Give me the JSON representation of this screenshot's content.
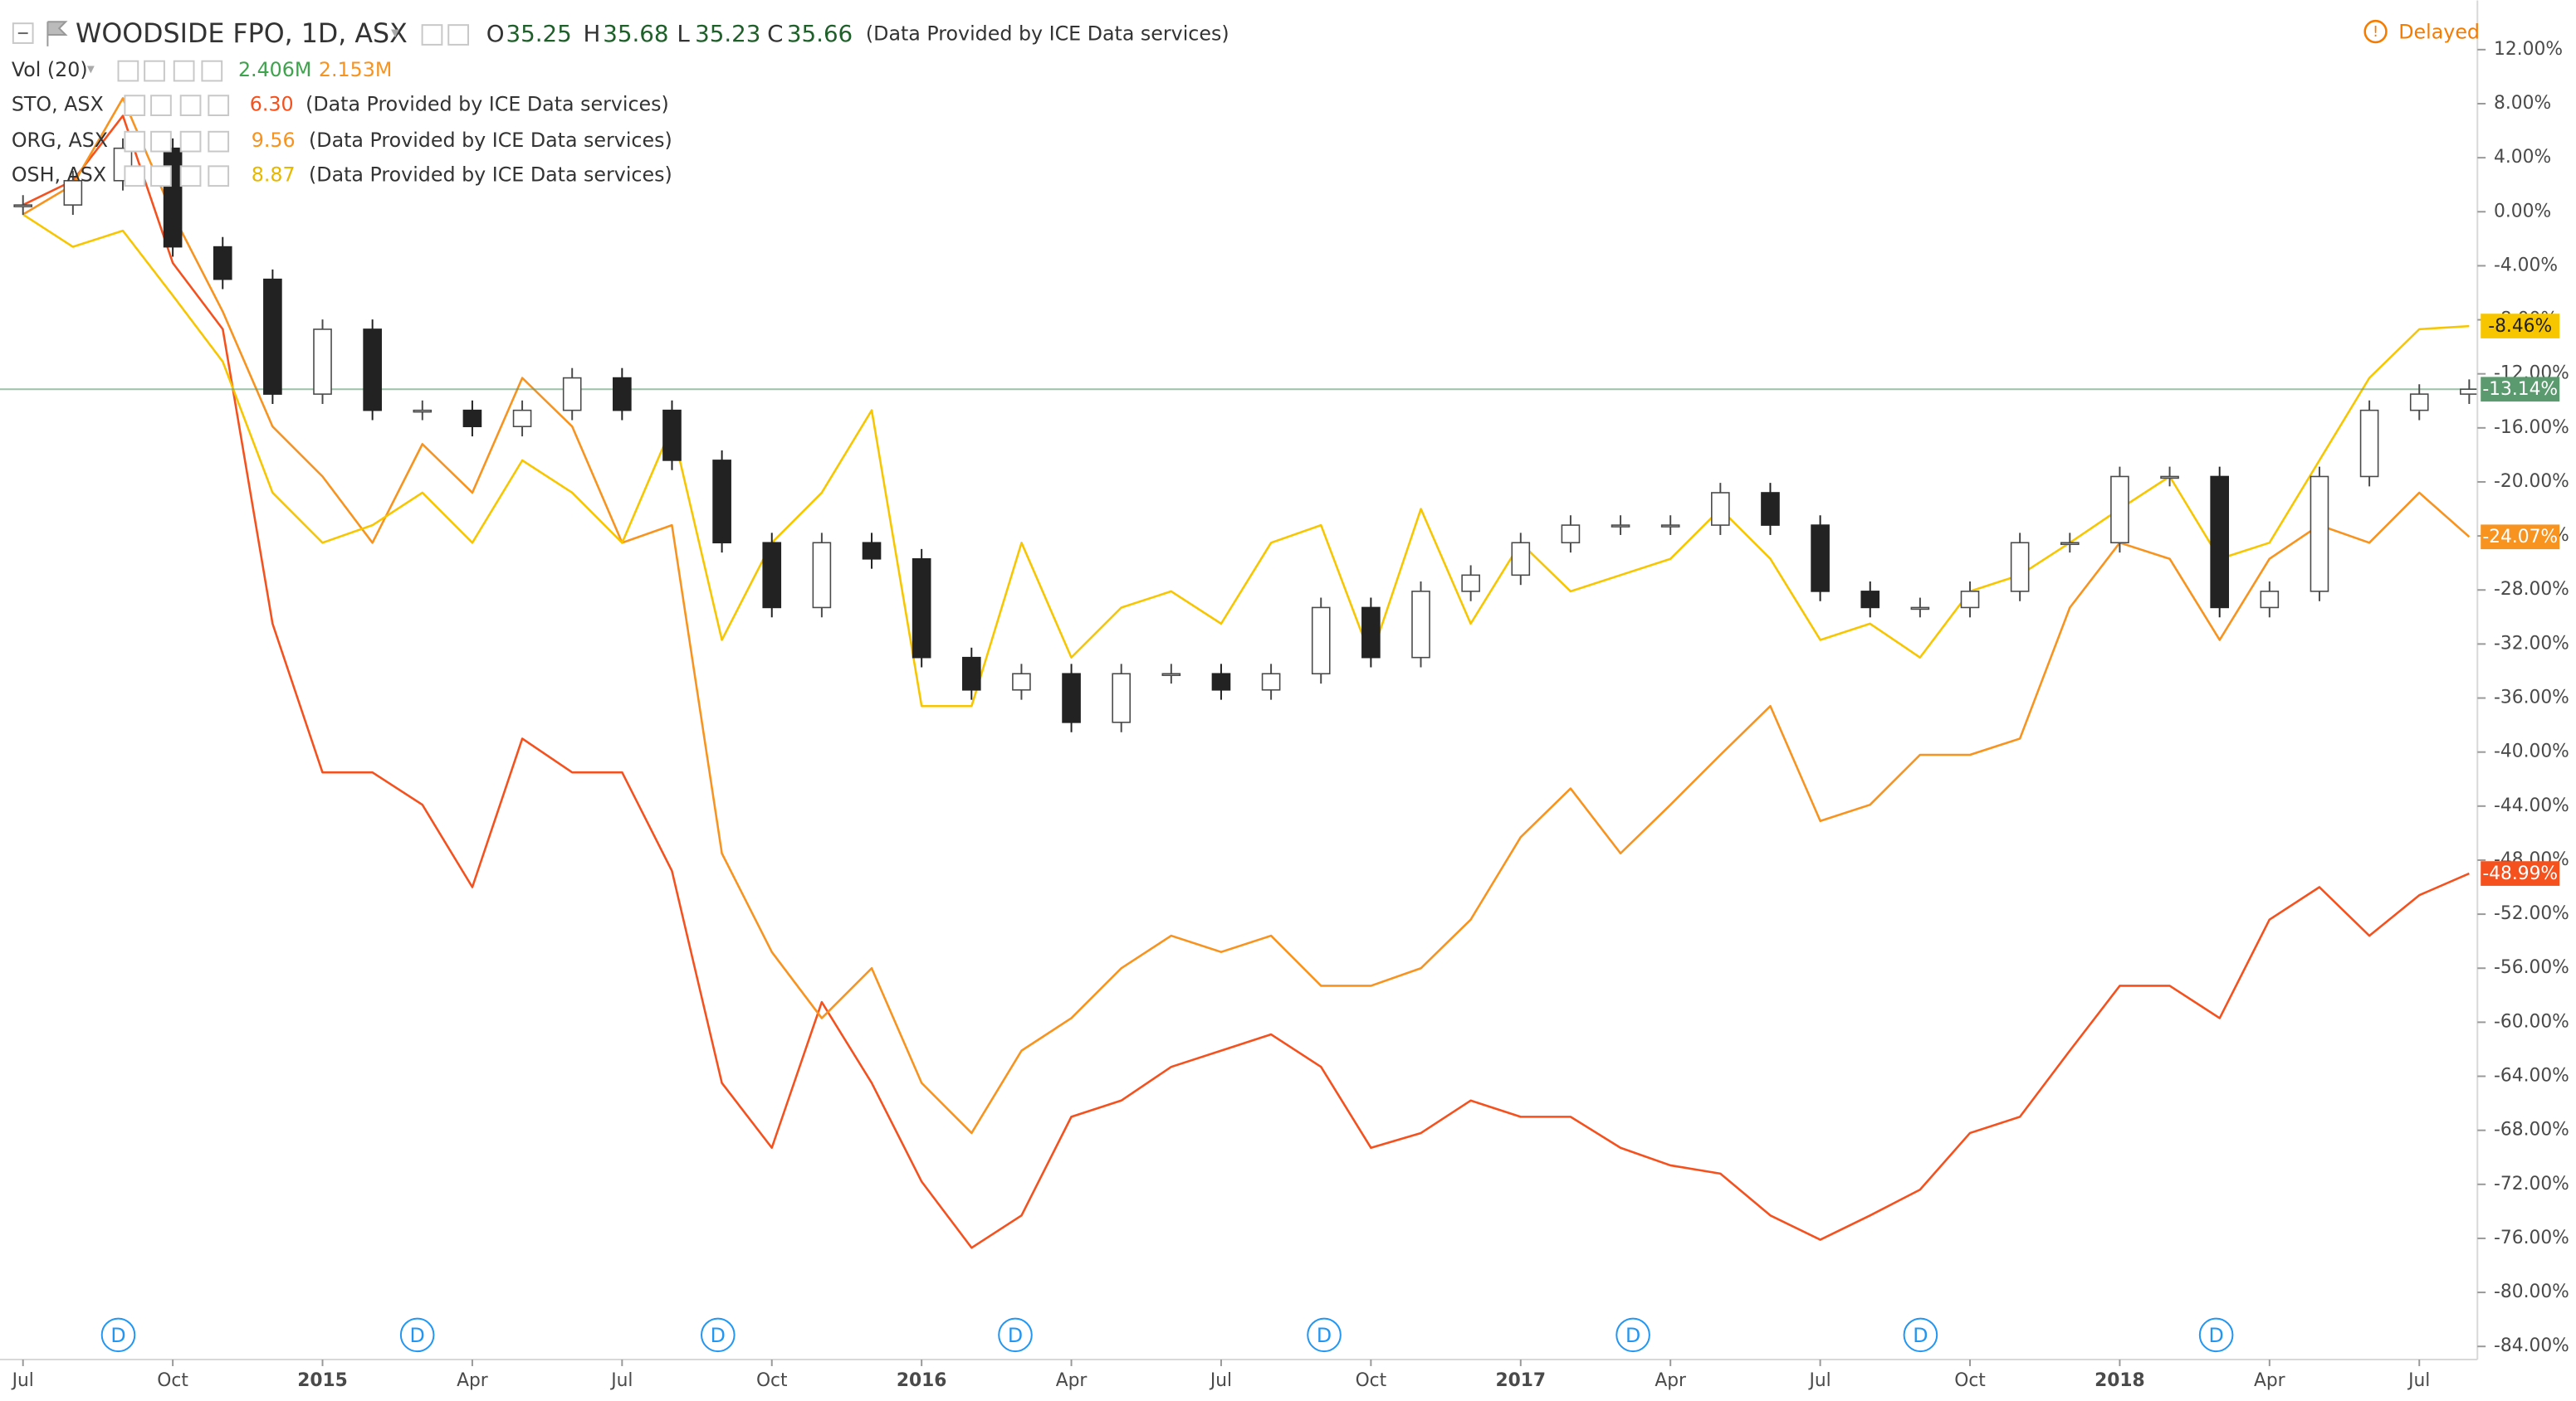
{
  "chart_data": {
    "type": "line",
    "header": {
      "ohlc": [
        {
          "key": "O",
          "value": "35.25"
        },
        {
          "key": "H",
          "value": "35.68"
        },
        {
          "key": "L",
          "value": "35.23"
        },
        {
          "key": "C",
          "value": "35.66"
        }
      ],
      "source": "(Data Provided by ICE Data services)",
      "status": "Delayed",
      "volume_name": "Vol (20)",
      "volume_values": [
        "2.406M",
        "2.153M"
      ],
      "compare_values": [
        "6.30",
        "9.56",
        "8.87"
      ],
      "dividend_markers": [
        "D",
        "D",
        "D",
        "D",
        "D",
        "D",
        "D",
        "D"
      ]
    },
    "categories": [
      "Jul",
      null,
      null,
      "Oct",
      null,
      null,
      "2015",
      null,
      null,
      "Apr",
      null,
      null,
      "Jul",
      null,
      null,
      "Oct",
      null,
      null,
      "2016",
      null,
      null,
      "Apr",
      null,
      null,
      "Jul",
      null,
      null,
      "Oct",
      null,
      null,
      "2017",
      null,
      null,
      "Apr",
      null,
      null,
      "Jul",
      null,
      null,
      "Oct",
      null,
      null,
      "2018",
      null,
      null,
      "Apr",
      null,
      null,
      "Jul",
      null
    ],
    "series": [
      {
        "name": "STO, ASX",
        "color": "#f4511e",
        "label_color": "#ffffff",
        "values": [
          0.5,
          2.3,
          7.1,
          -3.8,
          -8.7,
          -30.5,
          -41.5,
          -41.5,
          -43.9,
          -50,
          -39,
          -41.5,
          -41.5,
          -48.8,
          -64.5,
          -69.3,
          -58.5,
          -64.5,
          -71.8,
          -76.7,
          -74.3,
          -67,
          -65.8,
          -63.3,
          -62.1,
          -60.9,
          -63.3,
          -69.3,
          -68.2,
          -65.8,
          -67,
          -67,
          -69.3,
          -70.6,
          -71.2,
          -74.3,
          -76.1,
          -74.3,
          -72.4,
          -68.2,
          -67,
          -62.1,
          -57.3,
          -57.3,
          -59.7,
          -52.4,
          -50,
          -53.6,
          -50.6,
          -48.99
        ],
        "value_labels": [
          null,
          null,
          null,
          null,
          null,
          null,
          null,
          null,
          null,
          null,
          null,
          null,
          null,
          null,
          null,
          null,
          null,
          null,
          null,
          null,
          null,
          null,
          null,
          null,
          null,
          null,
          null,
          null,
          null,
          null,
          null,
          null,
          null,
          null,
          null,
          null,
          null,
          null,
          null,
          null,
          null,
          null,
          null,
          null,
          null,
          null,
          null,
          null,
          null,
          "-48.99%"
        ]
      },
      {
        "name": "ORG, ASX",
        "color": "#f7931e",
        "label_color": "#ffffff",
        "values": [
          -0.2,
          2,
          8.4,
          -0.2,
          -7.4,
          -15.9,
          -19.6,
          -24.5,
          -17.2,
          -20.8,
          -12.3,
          -15.9,
          -24.5,
          -23.2,
          -47.5,
          -54.8,
          -59.7,
          -56,
          -64.5,
          -68.2,
          -62.1,
          -59.7,
          -56,
          -53.6,
          -54.8,
          -53.6,
          -57.3,
          -57.3,
          -56,
          -52.4,
          -46.3,
          -42.7,
          -47.5,
          -43.9,
          -40.2,
          -36.6,
          -45.1,
          -43.9,
          -40.2,
          -40.2,
          -39,
          -29.3,
          -24.5,
          -25.7,
          -31.7,
          -25.7,
          -23.2,
          -24.5,
          -20.8,
          -24.07
        ],
        "value_labels": [
          null,
          null,
          null,
          null,
          null,
          null,
          null,
          null,
          null,
          null,
          null,
          null,
          null,
          null,
          null,
          null,
          null,
          null,
          null,
          null,
          null,
          null,
          null,
          null,
          null,
          null,
          null,
          null,
          null,
          null,
          null,
          null,
          null,
          null,
          null,
          null,
          null,
          null,
          null,
          null,
          null,
          null,
          null,
          null,
          null,
          null,
          null,
          null,
          null,
          "-24.07%"
        ]
      },
      {
        "name": "OSH, ASX",
        "color": "#f7c600",
        "label_color": "#222222",
        "values": [
          -0.2,
          -2.6,
          -1.4,
          -6.2,
          -11.1,
          -20.8,
          -24.5,
          -23.2,
          -20.8,
          -24.5,
          -18.4,
          -20.8,
          -24.5,
          -15.9,
          -31.7,
          -24.5,
          -20.8,
          -14.7,
          -36.6,
          -36.6,
          -24.5,
          -33,
          -29.3,
          -28.1,
          -30.5,
          -24.5,
          -23.2,
          -33,
          -22,
          -30.5,
          -24.5,
          -28.1,
          -26.9,
          -25.7,
          -22,
          -25.7,
          -31.7,
          -30.5,
          -33,
          -28.1,
          -26.9,
          -24.5,
          -22,
          -19.6,
          -25.7,
          -24.5,
          -18.4,
          -12.3,
          -8.7,
          -8.46
        ],
        "value_labels": [
          null,
          null,
          null,
          null,
          null,
          null,
          null,
          null,
          null,
          null,
          null,
          null,
          null,
          null,
          null,
          null,
          null,
          null,
          null,
          null,
          null,
          null,
          null,
          null,
          null,
          null,
          null,
          null,
          null,
          null,
          null,
          null,
          null,
          null,
          null,
          null,
          null,
          null,
          null,
          null,
          null,
          null,
          null,
          null,
          null,
          null,
          null,
          null,
          null,
          "-8.46%"
        ]
      },
      {
        "name": "WOODSIDE FPO, 1D, ASX",
        "color": "#333333",
        "style": "candle",
        "label_color": "#ffffff",
        "badge_color": "#5a9a6e",
        "values": [
          0.5,
          2.3,
          4.7,
          -2.6,
          -5,
          -13.5,
          -8.7,
          -14.7,
          -14.7,
          -15.9,
          -14.7,
          -12.3,
          -14.7,
          -18.4,
          -24.5,
          -29.3,
          -24.5,
          -25.7,
          -33,
          -35.4,
          -34.2,
          -37.8,
          -34.2,
          -34.2,
          -35.4,
          -34.2,
          -29.3,
          -33,
          -28.1,
          -26.9,
          -24.5,
          -23.2,
          -23.2,
          -23.2,
          -20.8,
          -23.2,
          -28.1,
          -29.3,
          -29.3,
          -28.1,
          -24.5,
          -24.5,
          -19.6,
          -19.6,
          -29.3,
          -28.1,
          -19.6,
          -14.7,
          -13.5,
          -13.14
        ],
        "value_labels": [
          null,
          null,
          null,
          null,
          null,
          null,
          null,
          null,
          null,
          null,
          null,
          null,
          null,
          null,
          null,
          null,
          null,
          null,
          null,
          null,
          null,
          null,
          null,
          null,
          null,
          null,
          null,
          null,
          null,
          null,
          null,
          null,
          null,
          null,
          null,
          null,
          null,
          null,
          null,
          null,
          null,
          null,
          null,
          null,
          null,
          null,
          null,
          null,
          null,
          "-13.14%"
        ]
      }
    ],
    "ylim": [
      -84,
      12
    ],
    "yticks": [
      {
        "value": 12,
        "label": "12.00%"
      },
      {
        "value": 8,
        "label": "8.00%"
      },
      {
        "value": 4,
        "label": "4.00%"
      },
      {
        "value": 0,
        "label": "0.00%"
      },
      {
        "value": -4,
        "label": "-4.00%"
      },
      {
        "value": -8,
        "label": "-8.00%"
      },
      {
        "value": -12,
        "label": "-12.00%"
      },
      {
        "value": -16,
        "label": "-16.00%"
      },
      {
        "value": -20,
        "label": "-20.00%"
      },
      {
        "value": -24,
        "label": "-24.00%"
      },
      {
        "value": -28,
        "label": "-28.00%"
      },
      {
        "value": -32,
        "label": "-32.00%"
      },
      {
        "value": -36,
        "label": "-36.00%"
      },
      {
        "value": -40,
        "label": "-40.00%"
      },
      {
        "value": -44,
        "label": "-44.00%"
      },
      {
        "value": -48,
        "label": "-48.00%"
      },
      {
        "value": -52,
        "label": "-52.00%"
      },
      {
        "value": -56,
        "label": "-56.00%"
      },
      {
        "value": -60,
        "label": "-60.00%"
      },
      {
        "value": -64,
        "label": "-64.00%"
      },
      {
        "value": -68,
        "label": "-68.00%"
      },
      {
        "value": -72,
        "label": "-72.00%"
      },
      {
        "value": -76,
        "label": "-76.00%"
      },
      {
        "value": -80,
        "label": "-80.00%"
      },
      {
        "value": -84,
        "label": "-84.00%"
      }
    ],
    "grid": false
  }
}
